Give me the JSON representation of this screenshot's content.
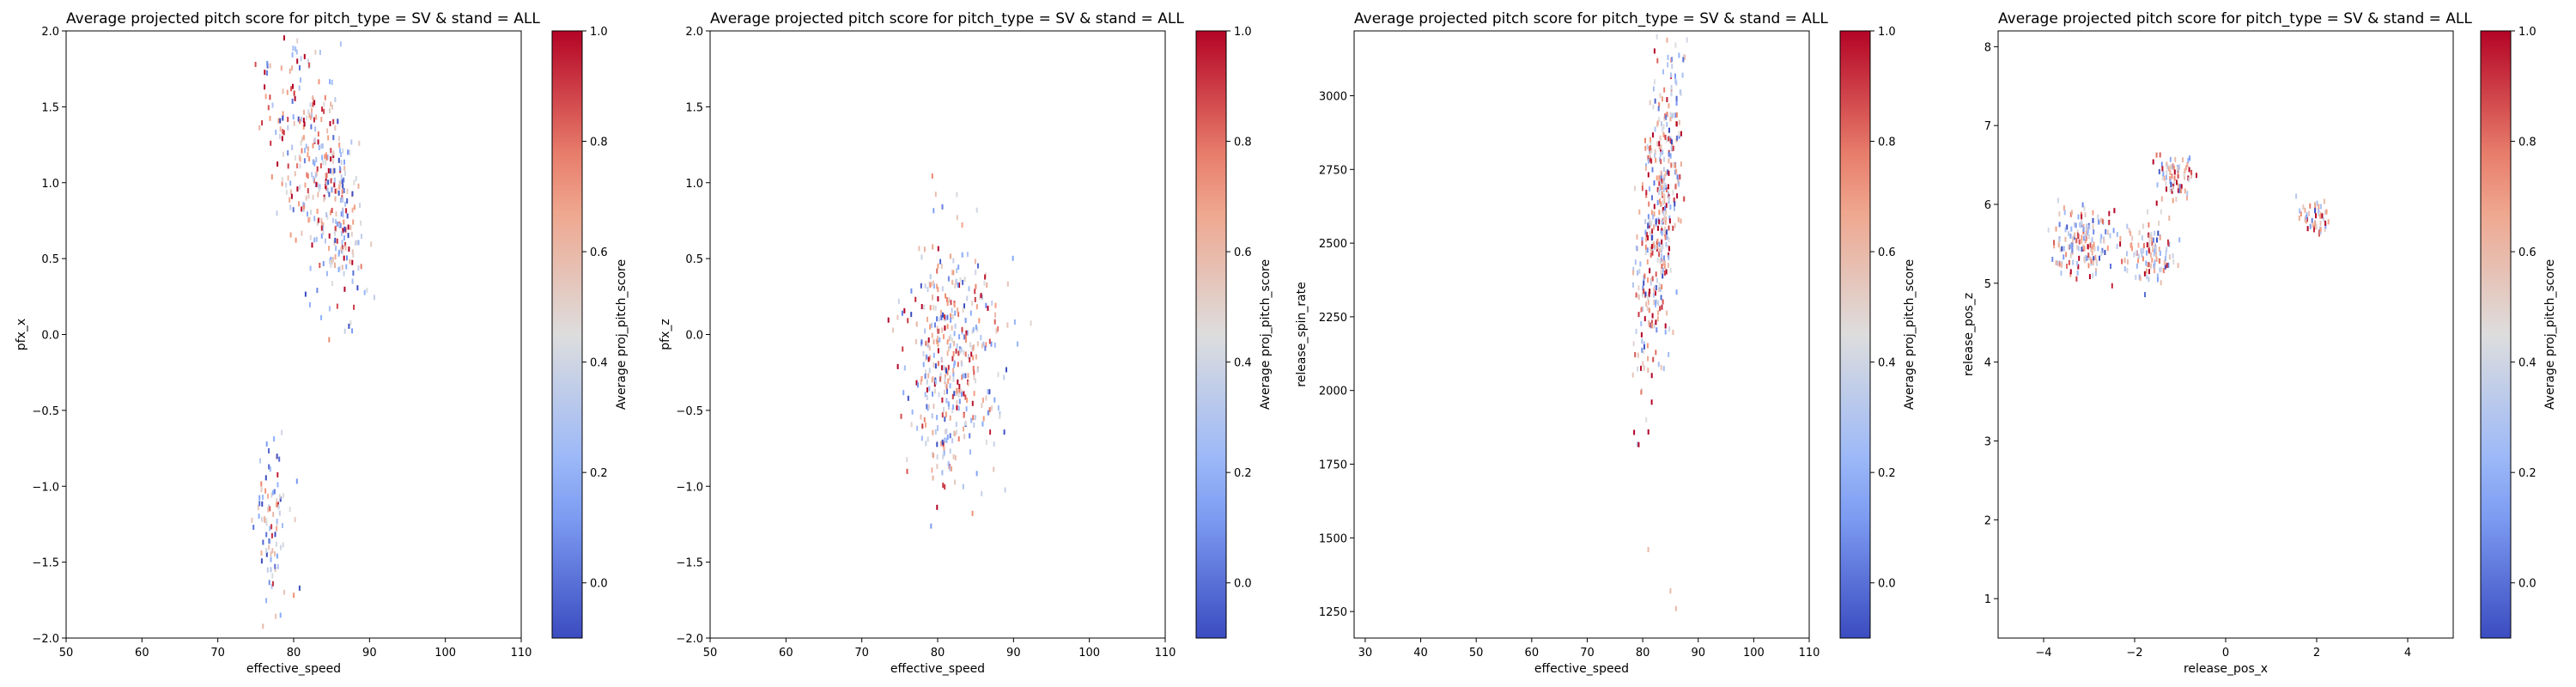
{
  "chart_data": [
    {
      "type": "heatmap",
      "title": "Average projected pitch score for pitch_type = SV & stand = ALL",
      "xlabel": "effective_speed",
      "ylabel": "pfx_x",
      "xlim": [
        50,
        110
      ],
      "ylim": [
        -2.0,
        2.0
      ],
      "xticks": [
        50,
        60,
        70,
        80,
        90,
        100,
        110
      ],
      "xtick_labels": [
        "50",
        "60",
        "70",
        "80",
        "90",
        "100",
        "110"
      ],
      "yticks": [
        -2.0,
        -1.5,
        -1.0,
        -0.5,
        0.0,
        0.5,
        1.0,
        1.5,
        2.0
      ],
      "ytick_labels": [
        "−2.0",
        "−1.5",
        "−1.0",
        "−0.5",
        "0.0",
        "0.5",
        "1.0",
        "1.5",
        "2.0"
      ],
      "colorbar": {
        "label": "Average proj_pitch_score",
        "range": [
          -0.1,
          1.0
        ],
        "ticks": [
          0.0,
          0.2,
          0.4,
          0.6,
          0.8,
          1.0
        ],
        "tick_labels": [
          "0.0",
          "0.2",
          "0.4",
          "0.6",
          "0.8",
          "1.0"
        ],
        "colormap": "coolwarm"
      },
      "clusters": [
        {
          "x_center": 82,
          "y_center": 1.2,
          "x_spread": 3.0,
          "y_spread": 0.35,
          "score_mean": 0.6,
          "count": 260,
          "tilt": -0.06
        },
        {
          "x_center": 86,
          "y_center": 0.7,
          "x_spread": 1.8,
          "y_spread": 0.3,
          "score_mean": 0.45,
          "count": 120,
          "tilt": 0
        },
        {
          "x_center": 77,
          "y_center": -1.25,
          "x_spread": 1.2,
          "y_spread": 0.3,
          "score_mean": 0.35,
          "count": 90,
          "tilt": 0
        }
      ]
    },
    {
      "type": "heatmap",
      "title": "Average projected pitch score for pitch_type = SV & stand = ALL",
      "xlabel": "effective_speed",
      "ylabel": "pfx_z",
      "xlim": [
        50,
        110
      ],
      "ylim": [
        -2.0,
        2.0
      ],
      "xticks": [
        50,
        60,
        70,
        80,
        90,
        100,
        110
      ],
      "xtick_labels": [
        "50",
        "60",
        "70",
        "80",
        "90",
        "100",
        "110"
      ],
      "yticks": [
        -2.0,
        -1.5,
        -1.0,
        -0.5,
        0.0,
        0.5,
        1.0,
        1.5,
        2.0
      ],
      "ytick_labels": [
        "−2.0",
        "−1.5",
        "−1.0",
        "−0.5",
        "0.0",
        "0.5",
        "1.0",
        "1.5",
        "2.0"
      ],
      "colorbar": {
        "label": "Average proj_pitch_score",
        "range": [
          -0.1,
          1.0
        ],
        "ticks": [
          0.0,
          0.2,
          0.4,
          0.6,
          0.8,
          1.0
        ],
        "tick_labels": [
          "0.0",
          "0.2",
          "0.4",
          "0.6",
          "0.8",
          "1.0"
        ],
        "colormap": "coolwarm"
      },
      "clusters": [
        {
          "x_center": 82,
          "y_center": -0.15,
          "x_spread": 3.2,
          "y_spread": 0.42,
          "score_mean": 0.5,
          "count": 420,
          "tilt": 0
        }
      ]
    },
    {
      "type": "heatmap",
      "title": "Average projected pitch score for pitch_type = SV & stand = ALL",
      "xlabel": "effective_speed",
      "ylabel": "release_spin_rate",
      "xlim": [
        28,
        110
      ],
      "ylim": [
        1160,
        3220
      ],
      "xticks": [
        30,
        40,
        50,
        60,
        70,
        80,
        90,
        100,
        110
      ],
      "xtick_labels": [
        "30",
        "40",
        "50",
        "60",
        "70",
        "80",
        "90",
        "100",
        "110"
      ],
      "yticks": [
        1250,
        1500,
        1750,
        2000,
        2250,
        2500,
        2750,
        3000
      ],
      "ytick_labels": [
        "1250",
        "1500",
        "1750",
        "2000",
        "2250",
        "2500",
        "2750",
        "3000"
      ],
      "colorbar": {
        "label": "Average proj_pitch_score",
        "range": [
          -0.1,
          1.0
        ],
        "ticks": [
          0.0,
          0.2,
          0.4,
          0.6,
          0.8,
          1.0
        ],
        "tick_labels": [
          "0.0",
          "0.2",
          "0.4",
          "0.6",
          "0.8",
          "1.0"
        ],
        "colormap": "coolwarm"
      },
      "clusters": [
        {
          "x_center": 83,
          "y_center": 2600,
          "x_spread": 2.2,
          "y_spread": 230,
          "score_mean": 0.55,
          "count": 420,
          "tilt": 75
        }
      ],
      "outliers": [
        {
          "x": 81,
          "y": 1460,
          "score": 0.6
        },
        {
          "x": 85,
          "y": 1320,
          "score": 0.6
        },
        {
          "x": 86,
          "y": 1260,
          "score": 0.6
        }
      ]
    },
    {
      "type": "heatmap",
      "title": "Average projected pitch score for pitch_type = SV & stand = ALL",
      "xlabel": "release_pos_x",
      "ylabel": "release_pos_z",
      "xlim": [
        -5,
        5
      ],
      "ylim": [
        0.5,
        8.2
      ],
      "xticks": [
        -4,
        -2,
        0,
        2,
        4
      ],
      "xtick_labels": [
        "−4",
        "−2",
        "0",
        "2",
        "4"
      ],
      "yticks": [
        1,
        2,
        3,
        4,
        5,
        6,
        7,
        8
      ],
      "ytick_labels": [
        "1",
        "2",
        "3",
        "4",
        "5",
        "6",
        "7",
        "8"
      ],
      "colorbar": {
        "label": "Average proj_pitch_score",
        "range": [
          -0.1,
          1.0
        ],
        "ticks": [
          0.0,
          0.2,
          0.4,
          0.6,
          0.8,
          1.0
        ],
        "tick_labels": [
          "0.0",
          "0.2",
          "0.4",
          "0.6",
          "0.8",
          "1.0"
        ],
        "colormap": "coolwarm"
      },
      "clusters": [
        {
          "x_center": -3.1,
          "y_center": 5.5,
          "x_spread": 0.35,
          "y_spread": 0.22,
          "score_mean": 0.5,
          "count": 160,
          "tilt": 0
        },
        {
          "x_center": -1.6,
          "y_center": 5.4,
          "x_spread": 0.3,
          "y_spread": 0.2,
          "score_mean": 0.5,
          "count": 110,
          "tilt": 0
        },
        {
          "x_center": -1.1,
          "y_center": 6.35,
          "x_spread": 0.22,
          "y_spread": 0.15,
          "score_mean": 0.55,
          "count": 70,
          "tilt": 0
        },
        {
          "x_center": 2.0,
          "y_center": 5.8,
          "x_spread": 0.18,
          "y_spread": 0.12,
          "score_mean": 0.6,
          "count": 50,
          "tilt": 0
        }
      ]
    }
  ]
}
